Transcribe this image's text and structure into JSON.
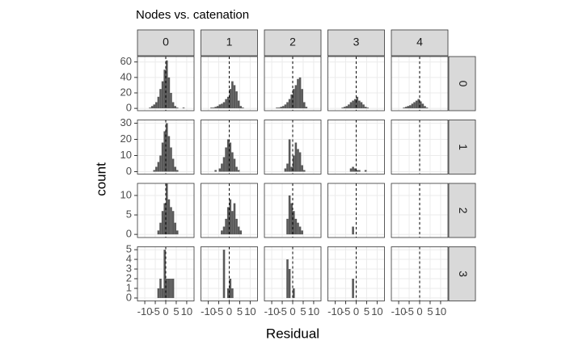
{
  "chart_data": {
    "type": "histogram",
    "title": "Nodes vs. catenation",
    "x_label": "Residual",
    "y_label": "count",
    "color": "#595959",
    "grid": true,
    "vline": 0,
    "col_labels": [
      "0",
      "1",
      "2",
      "3",
      "4"
    ],
    "row_labels": [
      "0",
      "1",
      "2",
      "3"
    ],
    "xlim": [
      -13.5,
      13.5
    ],
    "xticks": [
      -10,
      -5,
      0,
      5,
      10
    ],
    "bins": [
      -12,
      -11,
      -10,
      -9,
      -8,
      -7,
      -6,
      -5,
      -4,
      -3,
      -2,
      -1,
      0,
      1,
      2,
      3,
      4,
      5,
      6,
      7,
      8,
      9,
      10,
      11,
      12
    ],
    "rows": [
      {
        "ylim": [
          -3,
          67
        ],
        "yticks": [
          0,
          20,
          40,
          60
        ],
        "panels": [
          {
            "counts": [
              0,
              0,
              0,
              0,
              1,
              3,
              5,
              8,
              15,
              25,
              35,
              50,
              62,
              40,
              20,
              8,
              3,
              1,
              0,
              0,
              1,
              0,
              0,
              0
            ]
          },
          {
            "counts": [
              0,
              0,
              0,
              1,
              1,
              2,
              3,
              5,
              6,
              8,
              12,
              15,
              25,
              35,
              30,
              22,
              10,
              3,
              1,
              0,
              0,
              0,
              0,
              0
            ]
          },
          {
            "counts": [
              0,
              0,
              0,
              0,
              1,
              1,
              2,
              3,
              5,
              8,
              12,
              18,
              25,
              30,
              38,
              40,
              25,
              8,
              2,
              0,
              0,
              0,
              0,
              0
            ]
          },
          {
            "counts": [
              0,
              0,
              0,
              0,
              0,
              1,
              2,
              3,
              5,
              8,
              10,
              12,
              15,
              10,
              8,
              5,
              2,
              1,
              0,
              0,
              0,
              0,
              0,
              0
            ]
          },
          {
            "counts": [
              0,
              0,
              0,
              0,
              1,
              2,
              3,
              4,
              6,
              8,
              10,
              12,
              9,
              6,
              3,
              1,
              0,
              0,
              0,
              0,
              0,
              0,
              0,
              0
            ]
          }
        ]
      },
      {
        "ylim": [
          -1.5,
          32
        ],
        "yticks": [
          0,
          10,
          20,
          30
        ],
        "panels": [
          {
            "counts": [
              0,
              0,
              0,
              0,
              0,
              0,
              1,
              3,
              6,
              10,
              18,
              25,
              30,
              22,
              15,
              8,
              3,
              1,
              0,
              0,
              0,
              0,
              0,
              0
            ]
          },
          {
            "counts": [
              0,
              0,
              0,
              0,
              0,
              1,
              0,
              2,
              5,
              9,
              15,
              20,
              18,
              12,
              8,
              3,
              1,
              0,
              0,
              0,
              0,
              0,
              0,
              0
            ]
          },
          {
            "counts": [
              0,
              0,
              0,
              0,
              0,
              0,
              0,
              0,
              2,
              5,
              20,
              3,
              10,
              18,
              14,
              12,
              4,
              1,
              0,
              0,
              0,
              0,
              0,
              0
            ]
          },
          {
            "counts": [
              0,
              0,
              0,
              0,
              0,
              0,
              0,
              0,
              0,
              2,
              3,
              2,
              1,
              1,
              0,
              0,
              1,
              0,
              0,
              0,
              0,
              0,
              0,
              0
            ]
          },
          {
            "counts": [
              0,
              0,
              0,
              0,
              0,
              0,
              0,
              0,
              0,
              0,
              0,
              0,
              0,
              0,
              0,
              0,
              0,
              0,
              0,
              0,
              0,
              0,
              0,
              0
            ]
          }
        ]
      },
      {
        "ylim": [
          -0.8,
          13.1
        ],
        "yticks": [
          0,
          5,
          10
        ],
        "panels": [
          {
            "counts": [
              0,
              0,
              0,
              0,
              0,
              0,
              0,
              0,
              1,
              3,
              6,
              8,
              13,
              9,
              7,
              6,
              3,
              1,
              0,
              0,
              0,
              0,
              0,
              0
            ]
          },
          {
            "counts": [
              0,
              0,
              0,
              0,
              0,
              0,
              0,
              0,
              1,
              2,
              4,
              7,
              9,
              6,
              8,
              4,
              2,
              1,
              0,
              0,
              0,
              0,
              0,
              0
            ]
          },
          {
            "counts": [
              0,
              0,
              0,
              0,
              0,
              0,
              0,
              0,
              0,
              4,
              10,
              8,
              6,
              4,
              3,
              2,
              1,
              0,
              0,
              0,
              0,
              0,
              0,
              0
            ]
          },
          {
            "counts": [
              0,
              0,
              0,
              0,
              0,
              0,
              0,
              0,
              0,
              0,
              2,
              0,
              0,
              0,
              0,
              0,
              0,
              0,
              0,
              0,
              0,
              0,
              0,
              0
            ]
          },
          {
            "counts": [
              0,
              0,
              0,
              0,
              0,
              0,
              0,
              0,
              0,
              0,
              0,
              0,
              0,
              0,
              0,
              0,
              0,
              0,
              0,
              0,
              0,
              0,
              0,
              0
            ]
          }
        ]
      },
      {
        "ylim": [
          -0.3,
          5.3
        ],
        "yticks": [
          0,
          1,
          2,
          3,
          4,
          5
        ],
        "panels": [
          {
            "counts": [
              0,
              0,
              0,
              0,
              0,
              0,
              0,
              0,
              1,
              2,
              1,
              5,
              2,
              2,
              2,
              2,
              0,
              0,
              0,
              0,
              0,
              0,
              0,
              0
            ]
          },
          {
            "counts": [
              0,
              0,
              0,
              0,
              0,
              0,
              0,
              0,
              0,
              5,
              0,
              1,
              2,
              1,
              0,
              0,
              0,
              0,
              0,
              0,
              0,
              0,
              0,
              0
            ]
          },
          {
            "counts": [
              0,
              0,
              0,
              0,
              0,
              0,
              0,
              0,
              0,
              4,
              3,
              0,
              1,
              0,
              0,
              0,
              0,
              0,
              0,
              0,
              0,
              0,
              0,
              0
            ]
          },
          {
            "counts": [
              0,
              0,
              0,
              0,
              0,
              0,
              0,
              0,
              0,
              0,
              2,
              0,
              0,
              0,
              0,
              0,
              0,
              0,
              0,
              0,
              0,
              0,
              0,
              0
            ]
          },
          {
            "counts": [
              0,
              0,
              0,
              0,
              0,
              0,
              0,
              0,
              0,
              0,
              0,
              0,
              0,
              0,
              0,
              0,
              0,
              0,
              0,
              0,
              0,
              0,
              0,
              0
            ]
          }
        ]
      }
    ]
  }
}
